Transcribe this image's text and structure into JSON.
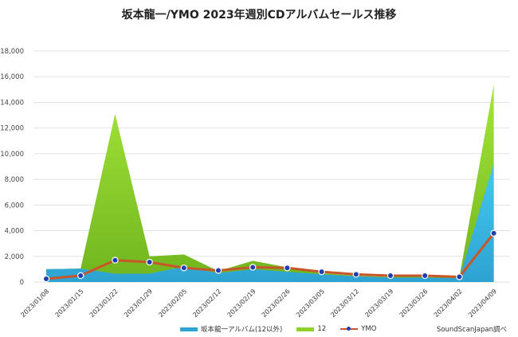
{
  "title": "坂本龍一/YMO 2023年週別CDアルバムセールス推移",
  "source": "SoundScanJapan調べ",
  "colors": {
    "blue": "#2ea3d2",
    "green": "#8fd12a",
    "ymo_line": "#c8562a",
    "ymo_marker": "#1f3fb0",
    "grid": "#e2e2e2"
  },
  "legend": [
    {
      "label": "坂本龍一アルバム(12以外)",
      "type": "area"
    },
    {
      "label": "12",
      "type": "area"
    },
    {
      "label": "YMO",
      "type": "line"
    }
  ],
  "chart_data": {
    "type": "area",
    "title": "坂本龍一/YMO 2023年週別CDアルバムセールス推移",
    "xlabel": "",
    "ylabel": "",
    "ylim": [
      0,
      18000
    ],
    "yticks": [
      0,
      2000,
      4000,
      6000,
      8000,
      10000,
      12000,
      14000,
      16000,
      18000
    ],
    "ytick_labels": [
      "0",
      "2,000",
      "4,000",
      "6,000",
      "8,000",
      "10,000",
      "12,000",
      "14,000",
      "16,000",
      "18,000"
    ],
    "grid": true,
    "legend_position": "bottom",
    "categories": [
      "2023/01/08",
      "2023/01/15",
      "2023/01/22",
      "2023/01/29",
      "2023/02/05",
      "2023/02/12",
      "2023/02/19",
      "2023/02/26",
      "2023/03/05",
      "2023/03/12",
      "2023/03/19",
      "2023/03/26",
      "2023/04/02",
      "2023/04/09"
    ],
    "series": [
      {
        "name": "坂本龍一アルバム(12以外)",
        "kind": "stacked-area",
        "values": [
          1000,
          1050,
          650,
          650,
          1200,
          700,
          1000,
          800,
          600,
          450,
          350,
          350,
          300,
          9250
        ]
      },
      {
        "name": "12",
        "kind": "stacked-area",
        "values": [
          0,
          0,
          12450,
          1350,
          950,
          150,
          650,
          350,
          100,
          50,
          50,
          50,
          50,
          6150
        ]
      },
      {
        "name": "YMO",
        "kind": "line",
        "values": [
          250,
          500,
          1700,
          1550,
          1100,
          900,
          1150,
          1100,
          800,
          600,
          500,
          500,
          400,
          3800
        ]
      }
    ],
    "source_note": "SoundScanJapan調べ"
  }
}
